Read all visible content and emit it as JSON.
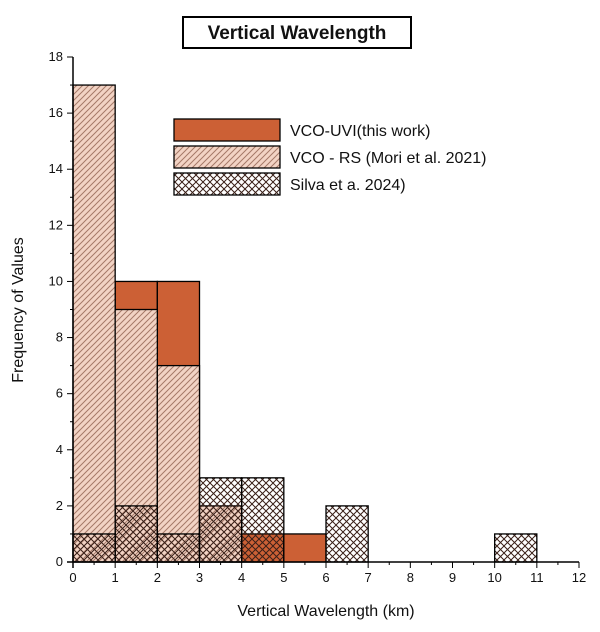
{
  "chart_data": {
    "type": "bar",
    "subtype": "histogram-overlay",
    "title": "Vertical Wavelength",
    "xlabel": "Vertical Wavelength (km)",
    "ylabel": "Frequency of Values",
    "xlim": [
      0,
      12
    ],
    "ylim": [
      0,
      18
    ],
    "xticks": [
      "0",
      "1",
      "2",
      "3",
      "4",
      "5",
      "6",
      "7",
      "8",
      "9",
      "10",
      "11",
      "12"
    ],
    "yticks": [
      "0",
      "2",
      "4",
      "6",
      "8",
      "10",
      "12",
      "14",
      "16",
      "18"
    ],
    "bin_width": 1,
    "legend_position": "top-right",
    "series": [
      {
        "name": "VCO - RS (Mori et al. 2021)",
        "fill": "#f2d3c4",
        "pattern": "diagonal-hatch",
        "bins": [
          {
            "x0": 0,
            "x1": 1,
            "value": 17
          },
          {
            "x0": 1,
            "x1": 2,
            "value": 9
          },
          {
            "x0": 2,
            "x1": 3,
            "value": 7
          },
          {
            "x0": 3,
            "x1": 4,
            "value": 2
          }
        ]
      },
      {
        "name": "VCO-UVI(this work)",
        "fill": "#cc6035",
        "pattern": "solid",
        "bins": [
          {
            "x0": 1,
            "x1": 2,
            "value": 10
          },
          {
            "x0": 2,
            "x1": 3,
            "value": 10
          },
          {
            "x0": 3,
            "x1": 4,
            "value": 1
          },
          {
            "x0": 4,
            "x1": 5,
            "value": 1
          },
          {
            "x0": 5,
            "x1": 6,
            "value": 1
          }
        ]
      },
      {
        "name": "Silva et a. 2024)",
        "fill": "#e8cfc0",
        "pattern": "crosshatch",
        "bins": [
          {
            "x0": 0,
            "x1": 1,
            "value": 1
          },
          {
            "x0": 1,
            "x1": 2,
            "value": 2
          },
          {
            "x0": 2,
            "x1": 3,
            "value": 1
          },
          {
            "x0": 3,
            "x1": 4,
            "value": 3
          },
          {
            "x0": 4,
            "x1": 5,
            "value": 3
          },
          {
            "x0": 6,
            "x1": 7,
            "value": 2
          },
          {
            "x0": 10,
            "x1": 11,
            "value": 1
          }
        ]
      }
    ],
    "draw_order": [
      "VCO-UVI(this work)",
      "VCO - RS (Mori et al. 2021)",
      "Silva et a. 2024)"
    ],
    "legend_order": [
      "VCO-UVI(this work)",
      "VCO - RS (Mori et al. 2021)",
      "Silva et a. 2024)"
    ]
  }
}
